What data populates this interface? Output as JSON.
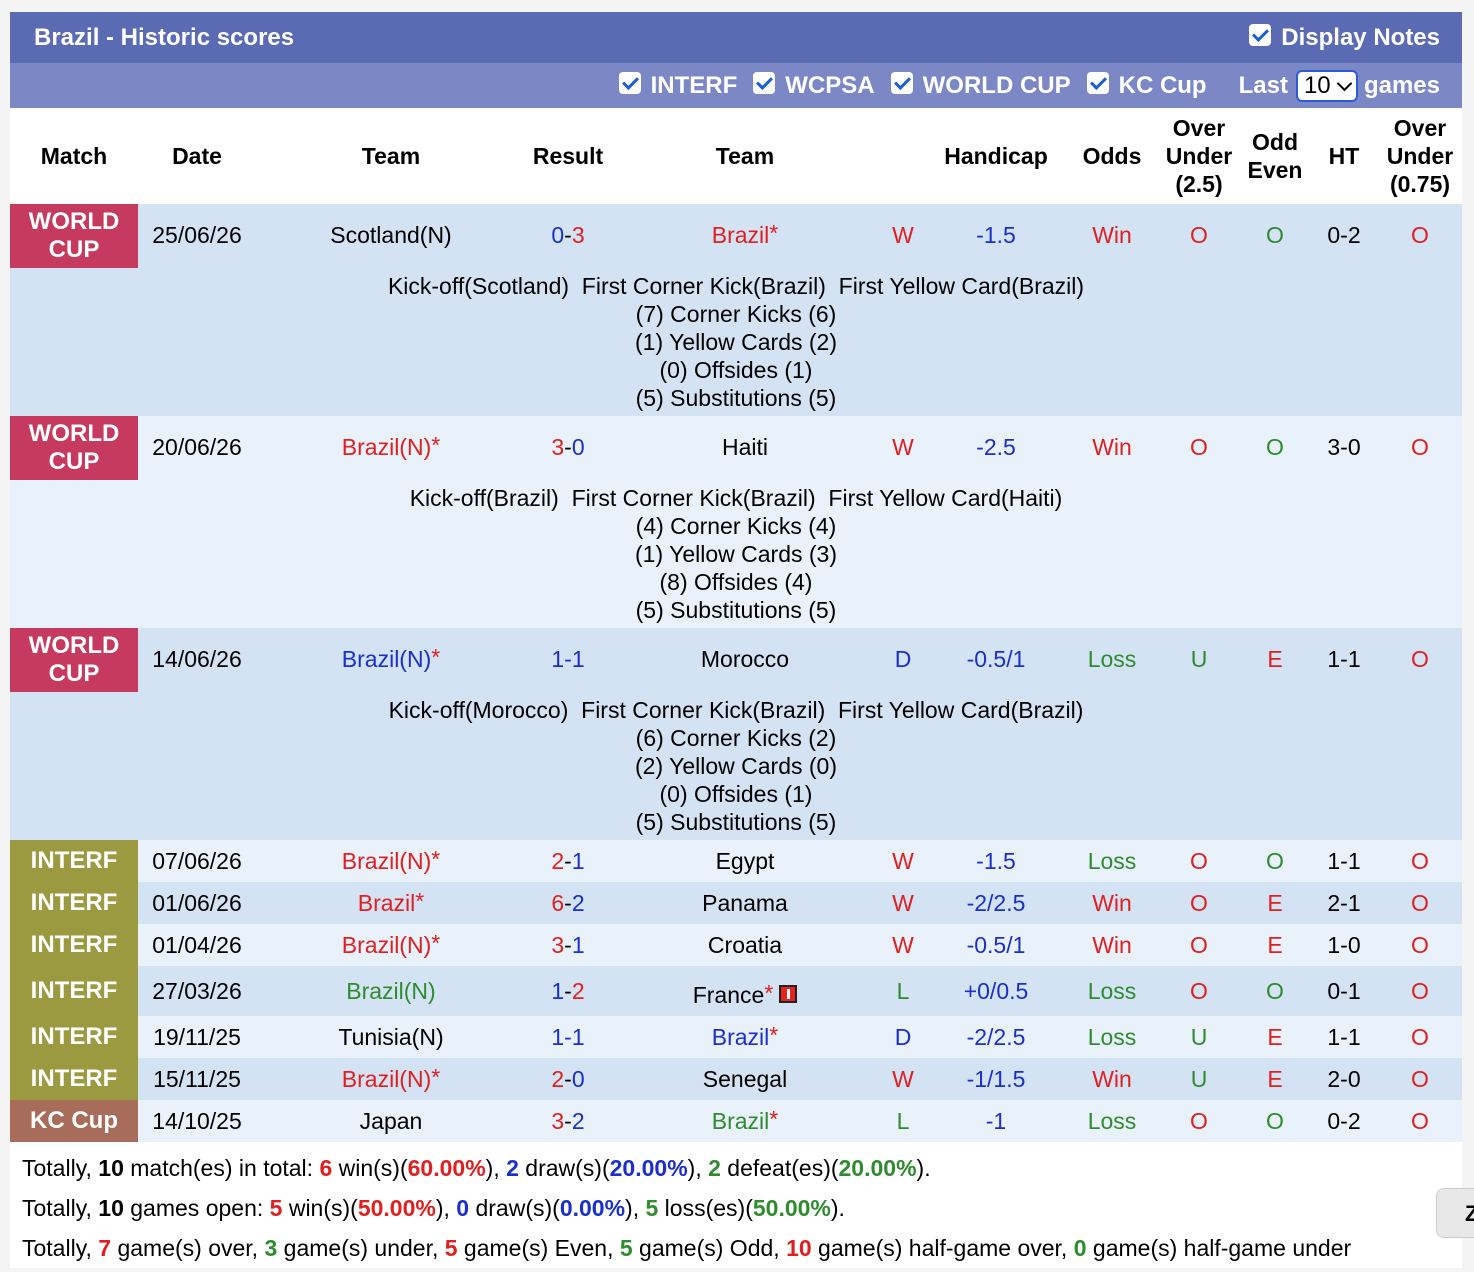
{
  "header": {
    "title": "Brazil - Historic scores",
    "display_notes": "Display Notes",
    "filters": [
      "INTERF",
      "WCPSA",
      "WORLD CUP",
      "KC Cup"
    ],
    "last_label": "Last",
    "last_value": "10",
    "games_label": "games"
  },
  "columns": {
    "match": "Match",
    "date": "Date",
    "team1": "Team",
    "result": "Result",
    "team2": "Team",
    "handicap": "Handicap",
    "odds": "Odds",
    "ou25_a": "Over",
    "ou25_b": "Under",
    "ou25_c": "(2.5)",
    "oe_a": "Odd",
    "oe_b": "Even",
    "ht": "HT",
    "ou075_a": "Over",
    "ou075_b": "Under",
    "ou075_c": "(0.75)"
  },
  "matches": [
    {
      "league_a": "WORLD",
      "league_b": "CUP",
      "date": "25/06/26",
      "home": "Scotland(N)",
      "home_star": "",
      "score_h": "0",
      "score_a": "3",
      "away": "Brazil",
      "away_star": "*",
      "wdl": "W",
      "hcp": "-1.5",
      "odds": "Win",
      "ou": "O",
      "oe": "O",
      "ht": "0-2",
      "ou2": "O",
      "notes": {
        "events": "Kick-off(Scotland)  First Corner Kick(Brazil)  First Yellow Card(Brazil)",
        "corners": "(7) Corner Kicks (6)",
        "yellows": "(1) Yellow Cards (2)",
        "offsides": "(0) Offsides (1)",
        "subs": "(5) Substitutions (5)"
      }
    },
    {
      "league_a": "WORLD",
      "league_b": "CUP",
      "date": "20/06/26",
      "home": "Brazil(N)",
      "home_star": "*",
      "score_h": "3",
      "score_a": "0",
      "away": "Haiti",
      "away_star": "",
      "wdl": "W",
      "hcp": "-2.5",
      "odds": "Win",
      "ou": "O",
      "oe": "O",
      "ht": "3-0",
      "ou2": "O",
      "notes": {
        "events": "Kick-off(Brazil)  First Corner Kick(Brazil)  First Yellow Card(Haiti)",
        "corners": "(4) Corner Kicks (4)",
        "yellows": "(1) Yellow Cards (3)",
        "offsides": "(8) Offsides (4)",
        "subs": "(5) Substitutions (5)"
      }
    },
    {
      "league_a": "WORLD",
      "league_b": "CUP",
      "date": "14/06/26",
      "home": "Brazil(N)",
      "home_star": "*",
      "score_h": "1",
      "score_a": "1",
      "away": "Morocco",
      "away_star": "",
      "wdl": "D",
      "hcp": "-0.5/1",
      "odds": "Loss",
      "ou": "U",
      "oe": "E",
      "ht": "1-1",
      "ou2": "O",
      "notes": {
        "events": "Kick-off(Morocco)  First Corner Kick(Brazil)  First Yellow Card(Brazil)",
        "corners": "(6) Corner Kicks (2)",
        "yellows": "(2) Yellow Cards (0)",
        "offsides": "(0) Offsides (1)",
        "subs": "(5) Substitutions (5)"
      }
    }
  ],
  "simple_matches": [
    {
      "league": "INTERF",
      "date": "07/06/26",
      "home": "Brazil(N)",
      "home_star": "*",
      "score_h": "2",
      "score_a": "1",
      "away": "Egypt",
      "away_star": "",
      "wdl": "W",
      "hcp": "-1.5",
      "odds": "Loss",
      "ou": "O",
      "oe": "O",
      "ht": "1-1",
      "ou2": "O"
    },
    {
      "league": "INTERF",
      "date": "01/06/26",
      "home": "Brazil",
      "home_star": "*",
      "score_h": "6",
      "score_a": "2",
      "away": "Panama",
      "away_star": "",
      "wdl": "W",
      "hcp": "-2/2.5",
      "odds": "Win",
      "ou": "O",
      "oe": "E",
      "ht": "2-1",
      "ou2": "O"
    },
    {
      "league": "INTERF",
      "date": "01/04/26",
      "home": "Brazil(N)",
      "home_star": "*",
      "score_h": "3",
      "score_a": "1",
      "away": "Croatia",
      "away_star": "",
      "wdl": "W",
      "hcp": "-0.5/1",
      "odds": "Win",
      "ou": "O",
      "oe": "E",
      "ht": "1-0",
      "ou2": "O"
    },
    {
      "league": "INTERF",
      "date": "27/03/26",
      "home": "Brazil(N)",
      "home_star": "",
      "score_h": "1",
      "score_a": "2",
      "away": "France",
      "away_star": "*",
      "wdl": "L",
      "hcp": "+0/0.5",
      "odds": "Loss",
      "ou": "O",
      "oe": "O",
      "ht": "0-1",
      "ou2": "O"
    },
    {
      "league": "INTERF",
      "date": "19/11/25",
      "home": "Tunisia(N)",
      "home_star": "",
      "score_h": "1",
      "score_a": "1",
      "away": "Brazil",
      "away_star": "*",
      "wdl": "D",
      "hcp": "-2/2.5",
      "odds": "Loss",
      "ou": "U",
      "oe": "E",
      "ht": "1-1",
      "ou2": "O"
    },
    {
      "league": "INTERF",
      "date": "15/11/25",
      "home": "Brazil(N)",
      "home_star": "*",
      "score_h": "2",
      "score_a": "0",
      "away": "Senegal",
      "away_star": "",
      "wdl": "W",
      "hcp": "-1/1.5",
      "odds": "Win",
      "ou": "U",
      "oe": "E",
      "ht": "2-0",
      "ou2": "O"
    },
    {
      "league": "KC Cup",
      "date": "14/10/25",
      "home": "Japan",
      "home_star": "",
      "score_h": "3",
      "score_a": "2",
      "away": "Brazil",
      "away_star": "*",
      "wdl": "L",
      "hcp": "-1",
      "odds": "Loss",
      "ou": "O",
      "oe": "O",
      "ht": "0-2",
      "ou2": "O"
    }
  ],
  "summary": {
    "l1": {
      "t1": "Totally, ",
      "total": "10",
      "t2": " match(es) in total: ",
      "wins": "6",
      "t3": " win(s)(",
      "win_pct": "60.00%",
      "t4": "), ",
      "draws": "2",
      "t5": " draw(s)(",
      "draw_pct": "20.00%",
      "t6": "), ",
      "defeats": "2",
      "t7": " defeat(es)(",
      "defeat_pct": "20.00%",
      "t8": ")."
    },
    "l2": {
      "t1": "Totally, ",
      "total": "10",
      "t2": " games open: ",
      "wins": "5",
      "t3": " win(s)(",
      "win_pct": "50.00%",
      "t4": "), ",
      "draws": "0",
      "t5": " draw(s)(",
      "draw_pct": "0.00%",
      "t6": "), ",
      "losses": "5",
      "t7": " loss(es)(",
      "loss_pct": "50.00%",
      "t8": ")."
    },
    "l3": {
      "t1": "Totally, ",
      "over": "7",
      "t2": " game(s) over, ",
      "under": "3",
      "t3": " game(s) under, ",
      "even": "5",
      "t4": " game(s) Even, ",
      "odd": "5",
      "t5": " game(s) Odd, ",
      "hg_over": "10",
      "t6": " game(s) half-game over, ",
      "hg_under": "0",
      "t7": " game(s) half-game under"
    }
  },
  "side_button": "Z",
  "colors": {
    "header": "#5a6ab3",
    "subheader": "#7c88c6",
    "world_cup": "#c53a5e",
    "interf": "#9c9a40",
    "kc_cup": "#a86c5a",
    "red": "#e02020",
    "blue": "#1a2fcc",
    "green": "#2e8b2e"
  }
}
